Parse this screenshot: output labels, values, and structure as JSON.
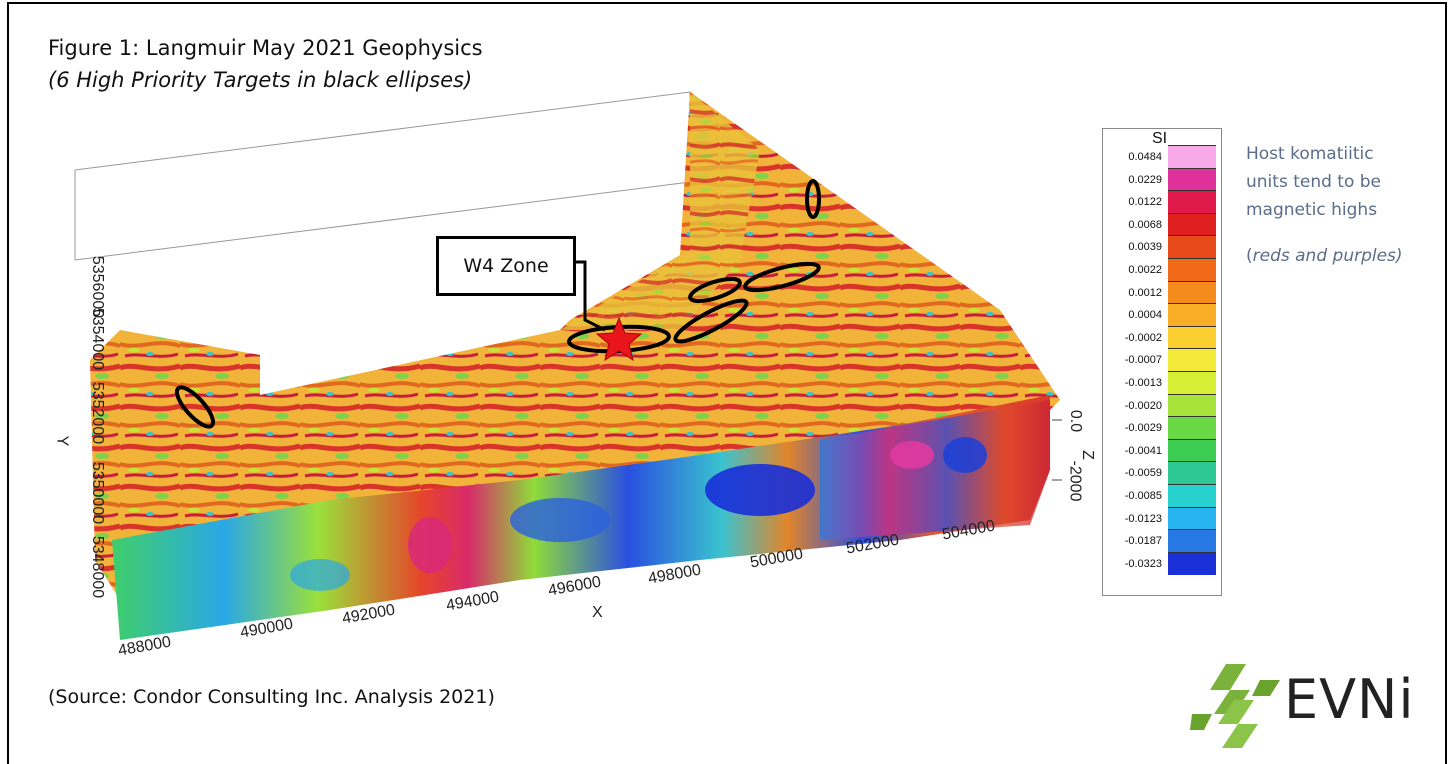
{
  "title": "Figure 1: Langmuir May 2021 Geophysics",
  "subtitle": "(6 High Priority Targets in black ellipses)",
  "source": "(Source: Condor Consulting Inc. Analysis 2021)",
  "callout_label": "W4 Zone",
  "legend": {
    "title": "SI",
    "entries": [
      {
        "label": "0.0484",
        "color": "#f7a9e8"
      },
      {
        "label": "0.0229",
        "color": "#e0309a"
      },
      {
        "label": "0.0122",
        "color": "#e01a4a"
      },
      {
        "label": "0.0068",
        "color": "#e0201f"
      },
      {
        "label": "0.0039",
        "color": "#e84a1a"
      },
      {
        "label": "0.0022",
        "color": "#f06a1a"
      },
      {
        "label": "0.0012",
        "color": "#f58b1c"
      },
      {
        "label": "0.0004",
        "color": "#f9ad26"
      },
      {
        "label": "-0.0002",
        "color": "#fbcf30"
      },
      {
        "label": "-0.0007",
        "color": "#f4ea3a"
      },
      {
        "label": "-0.0013",
        "color": "#d6ef35"
      },
      {
        "label": "-0.0020",
        "color": "#a6e23a"
      },
      {
        "label": "-0.0029",
        "color": "#6ad744"
      },
      {
        "label": "-0.0041",
        "color": "#3dcc52"
      },
      {
        "label": "-0.0059",
        "color": "#2cc792"
      },
      {
        "label": "-0.0085",
        "color": "#27d1cf"
      },
      {
        "label": "-0.0123",
        "color": "#26b3ef"
      },
      {
        "label": "-0.0187",
        "color": "#2678e3"
      },
      {
        "label": "-0.0323",
        "color": "#1a2fd8"
      }
    ]
  },
  "note_lines": [
    "Host komatiitic",
    "units tend to be",
    "magnetic highs"
  ],
  "note_paren_open": "(",
  "note_paren_italic": "reds and purples)",
  "axes": {
    "x_label": "X",
    "x_ticks": [
      "488000",
      "490000",
      "492000",
      "494000",
      "496000",
      "498000",
      "500000",
      "502000",
      "504000"
    ],
    "y_label": "Y",
    "y_ticks": [
      "5348000",
      "5350000",
      "5352000",
      "5354000",
      "5356000"
    ],
    "z_label": "Z",
    "z_ticks": [
      "0.0",
      "-2000"
    ]
  },
  "logo_text": "EVNi",
  "colors": {
    "logo_green": "#7bb23c",
    "note_text": "#5a6d8a",
    "star": "#e8151b"
  }
}
